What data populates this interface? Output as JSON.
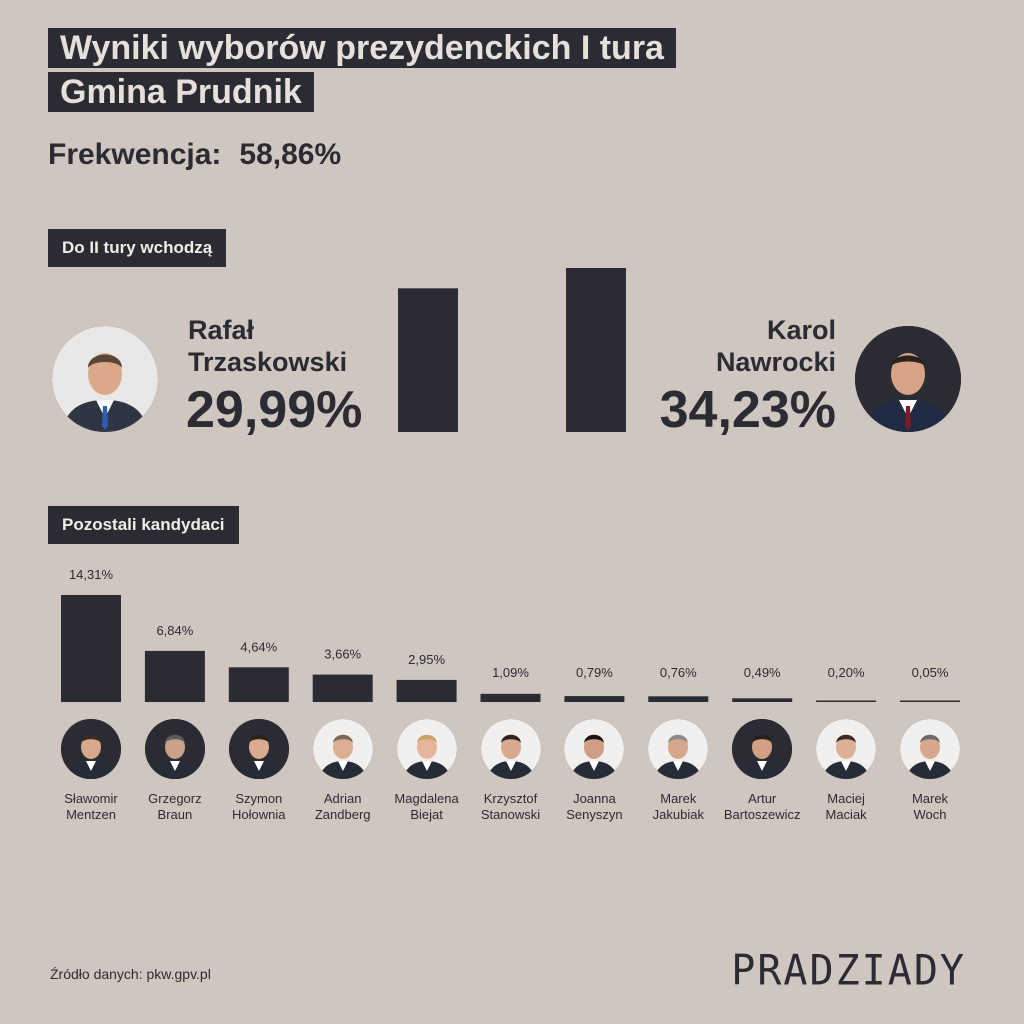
{
  "title": {
    "line1": "Wyniki wyborów prezydenckich I tura",
    "line2": "Gmina Prudnik"
  },
  "turnout": {
    "label": "Frekwencja:",
    "value": "58,86%"
  },
  "sections": {
    "finalists_label": "Do II tury wchodzą",
    "others_label": "Pozostali kandydaci"
  },
  "finalists": [
    {
      "first": "Rafał",
      "last": "Trzaskowski",
      "pct_label": "29,99%",
      "value": 29.99
    },
    {
      "first": "Karol",
      "last": "Nawrocki",
      "pct_label": "34,23%",
      "value": 34.23
    }
  ],
  "chart_data": {
    "type": "bar",
    "categories": [
      "Sławomir Mentzen",
      "Grzegorz Braun",
      "Szymon Hołownia",
      "Adrian Zandberg",
      "Magdalena Biejat",
      "Krzysztof Stanowski",
      "Joanna Senyszyn",
      "Marek Jakubiak",
      "Artur Bartoszewicz",
      "Maciej Maciak",
      "Marek Woch"
    ],
    "values": [
      14.31,
      6.84,
      4.64,
      3.66,
      2.95,
      1.09,
      0.79,
      0.76,
      0.49,
      0.2,
      0.05
    ],
    "value_labels": [
      "14,31%",
      "6,84%",
      "4,64%",
      "3,66%",
      "2,95%",
      "1,09%",
      "0,79%",
      "0,76%",
      "0,49%",
      "0,20%",
      "0,05%"
    ],
    "name_lines": [
      [
        "Sławomir",
        "Mentzen"
      ],
      [
        "Grzegorz",
        "Braun"
      ],
      [
        "Szymon",
        "Hołownia"
      ],
      [
        "Adrian",
        "Zandberg"
      ],
      [
        "Magdalena",
        "Biejat"
      ],
      [
        "Krzysztof",
        "Stanowski"
      ],
      [
        "Joanna",
        "Senyszyn"
      ],
      [
        "Marek",
        "Jakubiak"
      ],
      [
        "Artur",
        "Bartoszewicz"
      ],
      [
        "Maciej",
        "Maciak"
      ],
      [
        "Marek",
        "Woch"
      ]
    ],
    "title": "",
    "xlabel": "",
    "ylabel": ""
  },
  "avatar_bg": [
    "dark",
    "dark",
    "dark",
    "light",
    "light",
    "light",
    "light",
    "light",
    "dark",
    "light",
    "light"
  ],
  "source": "Źródło danych: pkw.gpv.pl",
  "logo": "PRADZIADY",
  "colors": {
    "background": "#d0c6c0",
    "bar": "#2a2b33",
    "label_bg": "#2a2b33",
    "label_text": "#f2ece8"
  }
}
